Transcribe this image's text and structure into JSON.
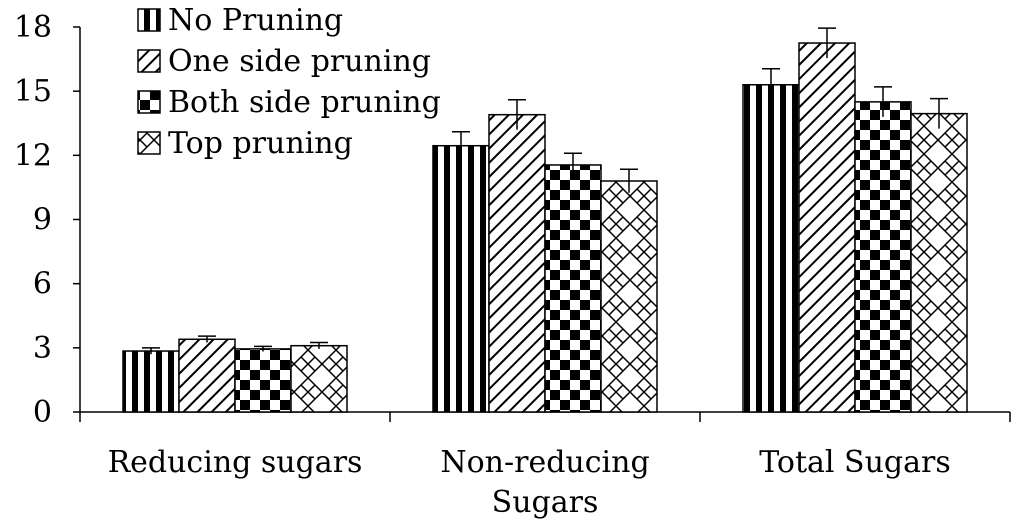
{
  "chart_data": {
    "type": "bar",
    "categories": [
      [
        "Reducing sugars"
      ],
      [
        "Non-reducing",
        "Sugars"
      ],
      [
        "Total Sugars"
      ]
    ],
    "series": [
      {
        "name": "No Pruning",
        "pattern": "vertical-stripes",
        "values": [
          2.85,
          12.45,
          15.3
        ],
        "errors": [
          0.15,
          0.65,
          0.75
        ]
      },
      {
        "name": "One side pruning",
        "pattern": "diagonal-stripes",
        "values": [
          3.4,
          13.9,
          17.25
        ],
        "errors": [
          0.15,
          0.7,
          0.7
        ]
      },
      {
        "name": "Both side pruning",
        "pattern": "checkerboard",
        "values": [
          2.95,
          11.55,
          14.5
        ],
        "errors": [
          0.12,
          0.55,
          0.7
        ]
      },
      {
        "name": "Top pruning",
        "pattern": "zigzag",
        "values": [
          3.1,
          10.8,
          13.95
        ],
        "errors": [
          0.15,
          0.55,
          0.7
        ]
      }
    ],
    "ylim": [
      0,
      18
    ],
    "yticks": [
      "0",
      "3",
      "6",
      "9",
      "12",
      "15",
      "18"
    ],
    "grid": false,
    "legend_position": "top-left",
    "colors": {
      "fill": "#ffffff",
      "stroke": "#000000"
    }
  }
}
